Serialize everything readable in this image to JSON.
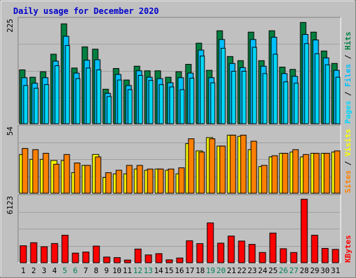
{
  "title": "Daily usage for December 2020",
  "colors": {
    "background": "#C0C0C0",
    "title_color": "#0000CC",
    "hits": "#008040",
    "files": "#00C0FF",
    "pages": "#00D8F8",
    "visits": "#FFFF00",
    "sites": "#FF8000",
    "kbytes": "#FF0000",
    "weekend_label": "#00805C",
    "weekday_label": "#000000"
  },
  "chart_data": [
    {
      "type": "bar",
      "panel": "hits-files-pages",
      "y_max_label": "225",
      "ylim": [
        0,
        225
      ],
      "legend": [
        "Pages",
        "Files",
        "Hits"
      ],
      "categories": [
        "1",
        "2",
        "3",
        "4",
        "5",
        "6",
        "7",
        "8",
        "9",
        "10",
        "11",
        "12",
        "13",
        "14",
        "15",
        "16",
        "17",
        "18",
        "19",
        "20",
        "21",
        "22",
        "23",
        "24",
        "25",
        "26",
        "27",
        "28",
        "29",
        "30",
        "31"
      ],
      "series": [
        {
          "name": "Hits",
          "values": [
            117,
            101,
            113,
            151,
            217,
            121,
            167,
            162,
            75,
            120,
            95,
            125,
            115,
            115,
            101,
            113,
            129,
            175,
            116,
            202,
            146,
            137,
            199,
            137,
            202,
            123,
            118,
            220,
            199,
            158,
            131
          ]
        },
        {
          "name": "Files",
          "values": [
            100,
            88,
            100,
            136,
            190,
            110,
            138,
            139,
            66,
            107,
            83,
            115,
            101,
            98,
            89,
            100,
            110,
            160,
            100,
            183,
            131,
            122,
            183,
            125,
            188,
            109,
            103,
            194,
            182,
            143,
            116
          ]
        },
        {
          "name": "Pages",
          "values": [
            83,
            77,
            85,
            126,
            170,
            98,
            121,
            117,
            59,
            95,
            74,
            105,
            94,
            85,
            80,
            74,
            99,
            147,
            89,
            164,
            114,
            114,
            166,
            109,
            151,
            91,
            88,
            174,
            152,
            128,
            101
          ]
        }
      ]
    },
    {
      "type": "bar",
      "panel": "visits-sites",
      "y_max_label": "54",
      "ylim": [
        0,
        54
      ],
      "legend": [
        "Sites",
        "Visits"
      ],
      "categories": [
        "1",
        "2",
        "3",
        "4",
        "5",
        "6",
        "7",
        "8",
        "9",
        "10",
        "11",
        "12",
        "13",
        "14",
        "15",
        "16",
        "17",
        "18",
        "19",
        "20",
        "21",
        "22",
        "23",
        "24",
        "25",
        "26",
        "27",
        "28",
        "29",
        "30",
        "31"
      ],
      "series": [
        {
          "name": "Visits",
          "values": [
            32,
            28,
            28,
            27,
            27,
            17,
            23,
            32,
            13,
            16,
            16,
            20,
            19,
            20,
            19,
            16,
            41,
            35,
            46,
            39,
            48,
            47,
            36,
            22,
            30,
            33,
            34,
            30,
            33,
            33,
            34
          ]
        },
        {
          "name": "Sites",
          "values": [
            37,
            36,
            33,
            24,
            32,
            25,
            23,
            30,
            17,
            19,
            23,
            23,
            20,
            20,
            20,
            21,
            45,
            34,
            45,
            39,
            48,
            48,
            43,
            23,
            31,
            33,
            36,
            32,
            33,
            33,
            35
          ]
        }
      ]
    },
    {
      "type": "bar",
      "panel": "kbytes",
      "y_max_label": "6123",
      "ylim": [
        0,
        6123
      ],
      "legend": [
        "KBytes"
      ],
      "categories": [
        "1",
        "2",
        "3",
        "4",
        "5",
        "6",
        "7",
        "8",
        "9",
        "10",
        "11",
        "12",
        "13",
        "14",
        "15",
        "16",
        "17",
        "18",
        "19",
        "20",
        "21",
        "22",
        "23",
        "24",
        "25",
        "26",
        "27",
        "28",
        "29",
        "30",
        "31"
      ],
      "series": [
        {
          "name": "KBytes",
          "values": [
            1590,
            1875,
            1500,
            1800,
            2580,
            900,
            1000,
            1560,
            530,
            480,
            250,
            1280,
            730,
            850,
            270,
            440,
            2060,
            1790,
            3730,
            1830,
            2500,
            2030,
            1720,
            960,
            2780,
            1310,
            960,
            5950,
            2580,
            1340,
            1250
          ]
        }
      ]
    }
  ],
  "x_labels": {
    "weekend_days": [
      "5",
      "6",
      "12",
      "13",
      "19",
      "20",
      "26",
      "27"
    ]
  }
}
